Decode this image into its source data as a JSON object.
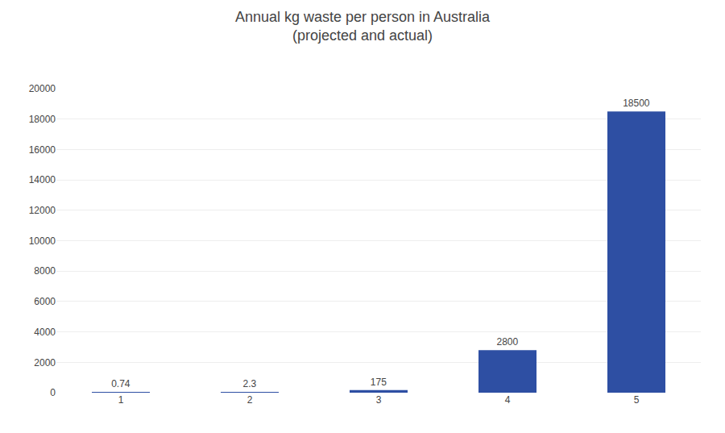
{
  "chart_data": {
    "type": "bar",
    "title": "Annual kg waste per person in Australia",
    "subtitle": "(projected and actual)",
    "categories": [
      "1",
      "2",
      "3",
      "4",
      "5"
    ],
    "values": [
      0.74,
      2.3,
      175,
      2800,
      18500
    ],
    "color": "#2E4FA3",
    "data_labels": true,
    "ylim": [
      0,
      20000
    ],
    "yticks": [
      0,
      2000,
      4000,
      6000,
      8000,
      10000,
      12000,
      14000,
      16000,
      18000,
      20000
    ],
    "grid": true
  }
}
